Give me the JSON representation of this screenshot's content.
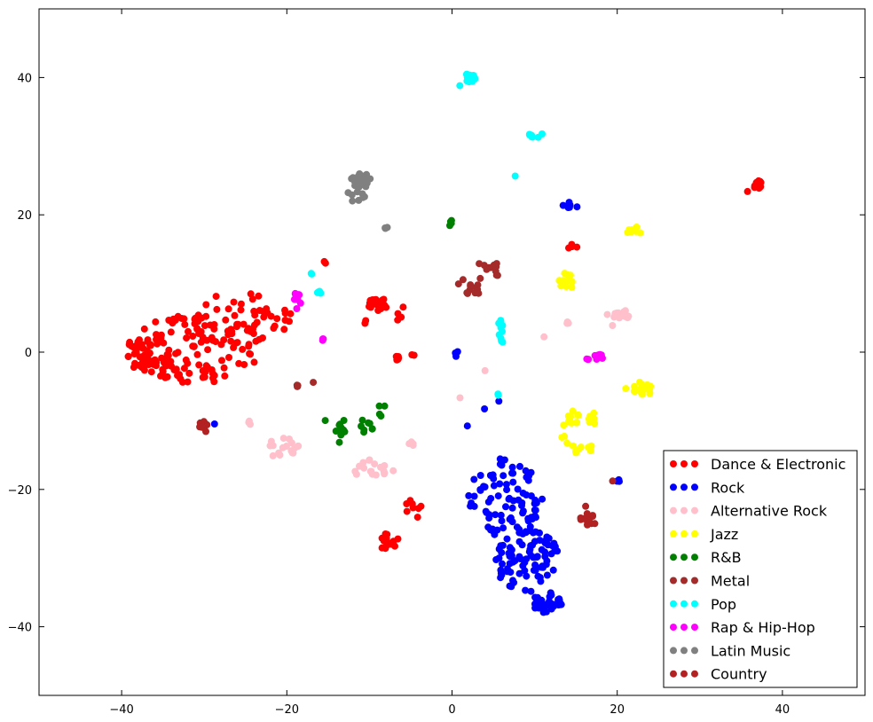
{
  "chart_data": {
    "type": "scatter",
    "title": "",
    "xlabel": "",
    "ylabel": "",
    "xlim": [
      -50,
      50
    ],
    "ylim": [
      -50,
      50
    ],
    "xticks": [
      -40,
      -20,
      0,
      20,
      40
    ],
    "yticks": [
      -40,
      -20,
      0,
      20,
      40
    ],
    "grid": false,
    "legend_position": "bottom-right",
    "series": [
      {
        "name": "Dance & Electronic",
        "color": "#ff0000",
        "clusters": [
          {
            "cx": -36.5,
            "cy": 0,
            "r": 1.5,
            "n": 40,
            "rx": 3,
            "ry": 3
          },
          {
            "cx": -31,
            "cy": 0.5,
            "rx": 8,
            "ry": 5,
            "n": 120
          },
          {
            "cx": -25,
            "cy": 5,
            "rx": 6,
            "ry": 4,
            "n": 45
          },
          {
            "cx": -9,
            "cy": 7,
            "rx": 1.2,
            "ry": 1,
            "n": 20
          },
          {
            "cx": -6.6,
            "cy": 5.5,
            "rx": 1.2,
            "ry": 1.5,
            "n": 4
          },
          {
            "cx": -15.5,
            "cy": 13,
            "rx": 0.3,
            "ry": 0.3,
            "n": 2
          },
          {
            "cx": -10.5,
            "cy": 4.4,
            "rx": 0.3,
            "ry": 0.3,
            "n": 2
          },
          {
            "cx": -6.5,
            "cy": -0.4,
            "rx": 0.6,
            "ry": 0.8,
            "n": 5
          },
          {
            "cx": -4.8,
            "cy": -0.4,
            "rx": 0.3,
            "ry": 0.3,
            "n": 2
          },
          {
            "cx": -4.5,
            "cy": -22.5,
            "rx": 1.2,
            "ry": 1.8,
            "n": 8
          },
          {
            "cx": -7.5,
            "cy": -27.8,
            "rx": 1.2,
            "ry": 1.5,
            "n": 14
          },
          {
            "cx": 37,
            "cy": 24.4,
            "rx": 0.6,
            "ry": 0.6,
            "n": 12
          },
          {
            "cx": 35.8,
            "cy": 23.3,
            "rx": 0.1,
            "ry": 0.1,
            "n": 1
          },
          {
            "cx": 14.5,
            "cy": 15.8,
            "rx": 0.8,
            "ry": 0.8,
            "n": 4
          }
        ]
      },
      {
        "name": "Rock",
        "color": "#0000ff",
        "clusters": [
          {
            "cx": 6.5,
            "cy": -21,
            "rx": 4.5,
            "ry": 6,
            "n": 80
          },
          {
            "cx": 9,
            "cy": -30,
            "rx": 4,
            "ry": 5,
            "n": 90
          },
          {
            "cx": 11.5,
            "cy": -36.5,
            "rx": 1.8,
            "ry": 1.5,
            "n": 40
          },
          {
            "cx": 14.5,
            "cy": 21.4,
            "rx": 0.8,
            "ry": 0.5,
            "n": 8
          },
          {
            "cx": 13.4,
            "cy": 21.4,
            "rx": 0.1,
            "ry": 0.1,
            "n": 1
          },
          {
            "cx": 0.6,
            "cy": -0.5,
            "rx": 0.3,
            "ry": 0.6,
            "n": 3
          },
          {
            "cx": 2,
            "cy": -10.7,
            "rx": 0.2,
            "ry": 0.2,
            "n": 1
          },
          {
            "cx": 4,
            "cy": -8.4,
            "rx": 0.2,
            "ry": 0.2,
            "n": 1
          },
          {
            "cx": 5.6,
            "cy": -7,
            "rx": 0.2,
            "ry": 0.2,
            "n": 1
          },
          {
            "cx": 20.2,
            "cy": -18.7,
            "rx": 0.3,
            "ry": 0.2,
            "n": 3
          },
          {
            "cx": -28.8,
            "cy": -10.5,
            "rx": 0.1,
            "ry": 0.1,
            "n": 1
          }
        ]
      },
      {
        "name": "Alternative Rock",
        "color": "#ffc0cb",
        "clusters": [
          {
            "cx": -20.5,
            "cy": -14,
            "rx": 2,
            "ry": 1.6,
            "n": 18
          },
          {
            "cx": -9.5,
            "cy": -17,
            "rx": 2.5,
            "ry": 1.5,
            "n": 18
          },
          {
            "cx": -4.8,
            "cy": -13.5,
            "rx": 0.5,
            "ry": 0.5,
            "n": 4
          },
          {
            "cx": -24.5,
            "cy": -10,
            "rx": 0.2,
            "ry": 0.6,
            "n": 3
          },
          {
            "cx": 20.5,
            "cy": 5.4,
            "rx": 1,
            "ry": 0.8,
            "n": 15
          },
          {
            "cx": 18.7,
            "cy": 5.5,
            "rx": 0.2,
            "ry": 0.2,
            "n": 1
          },
          {
            "cx": 19.3,
            "cy": 3.8,
            "rx": 0.2,
            "ry": 0.2,
            "n": 1
          },
          {
            "cx": 13.8,
            "cy": 4.3,
            "rx": 0.5,
            "ry": 0.2,
            "n": 3
          },
          {
            "cx": 11,
            "cy": 2.2,
            "rx": 0.2,
            "ry": 0.2,
            "n": 1
          },
          {
            "cx": 4,
            "cy": -2.9,
            "rx": 0.2,
            "ry": 0.2,
            "n": 1
          },
          {
            "cx": 0.8,
            "cy": -6.6,
            "rx": 0.2,
            "ry": 0.2,
            "n": 1
          }
        ]
      },
      {
        "name": "Jazz",
        "color": "#ffff00",
        "clusters": [
          {
            "cx": 23,
            "cy": -5.5,
            "rx": 1.2,
            "ry": 1.2,
            "n": 20
          },
          {
            "cx": 21,
            "cy": -5.2,
            "rx": 0.2,
            "ry": 0.2,
            "n": 1
          },
          {
            "cx": 14,
            "cy": 10.5,
            "rx": 1.2,
            "ry": 1.2,
            "n": 12
          },
          {
            "cx": 22,
            "cy": 17.8,
            "rx": 1.2,
            "ry": 0.6,
            "n": 7
          },
          {
            "cx": 14,
            "cy": -9.5,
            "rx": 1.5,
            "ry": 1.5,
            "n": 12
          },
          {
            "cx": 15.5,
            "cy": -14,
            "rx": 1.5,
            "ry": 1,
            "n": 8
          },
          {
            "cx": 17,
            "cy": -10.5,
            "rx": 0.6,
            "ry": 2.5,
            "n": 6
          },
          {
            "cx": 13.5,
            "cy": -12,
            "rx": 0.8,
            "ry": 1.5,
            "n": 4
          }
        ]
      },
      {
        "name": "R&B",
        "color": "#008000",
        "clusters": [
          {
            "cx": -13.5,
            "cy": -11.3,
            "rx": 0.6,
            "ry": 0.8,
            "n": 10
          },
          {
            "cx": -10.5,
            "cy": -11,
            "rx": 1,
            "ry": 1.2,
            "n": 8
          },
          {
            "cx": -8.5,
            "cy": -8.5,
            "rx": 0.5,
            "ry": 1.5,
            "n": 4
          },
          {
            "cx": -15.3,
            "cy": -10,
            "rx": 0.2,
            "ry": 0.2,
            "n": 1
          },
          {
            "cx": -13,
            "cy": -10,
            "rx": 0.2,
            "ry": 0.2,
            "n": 1
          },
          {
            "cx": -13.5,
            "cy": -13,
            "rx": 0.2,
            "ry": 0.2,
            "n": 1
          },
          {
            "cx": -0.2,
            "cy": 18.8,
            "rx": 0.2,
            "ry": 0.6,
            "n": 4
          }
        ]
      },
      {
        "name": "Metal",
        "color": "#a52a2a",
        "clusters": [
          {
            "cx": 4.5,
            "cy": 12.5,
            "rx": 1.5,
            "ry": 0.8,
            "n": 8
          },
          {
            "cx": 2.3,
            "cy": 9.8,
            "rx": 2,
            "ry": 1.5,
            "n": 14
          },
          {
            "cx": 5.5,
            "cy": 11.8,
            "rx": 0.3,
            "ry": 0.8,
            "n": 4
          },
          {
            "cx": -18.8,
            "cy": -4.5,
            "rx": 0.4,
            "ry": 0.6,
            "n": 4
          },
          {
            "cx": -16.8,
            "cy": -4.5,
            "rx": 0.2,
            "ry": 0.2,
            "n": 1
          }
        ]
      },
      {
        "name": "Pop",
        "color": "#00ffff",
        "clusters": [
          {
            "cx": 2.2,
            "cy": 40,
            "rx": 0.7,
            "ry": 0.7,
            "n": 16
          },
          {
            "cx": 1,
            "cy": 38.8,
            "rx": 0.2,
            "ry": 0.2,
            "n": 1
          },
          {
            "cx": 10,
            "cy": 31.8,
            "rx": 1,
            "ry": 0.6,
            "n": 8
          },
          {
            "cx": 7.8,
            "cy": 25.7,
            "rx": 0.2,
            "ry": 0.2,
            "n": 1
          },
          {
            "cx": 6,
            "cy": 3,
            "rx": 0.5,
            "ry": 1.8,
            "n": 10
          },
          {
            "cx": 5.7,
            "cy": -6.3,
            "rx": 0.2,
            "ry": 0.3,
            "n": 2
          },
          {
            "cx": -16,
            "cy": 8.7,
            "rx": 0.5,
            "ry": 0.2,
            "n": 4
          },
          {
            "cx": -17,
            "cy": 11.5,
            "rx": 0.3,
            "ry": 0.2,
            "n": 2
          }
        ]
      },
      {
        "name": "Rap & Hip-Hop",
        "color": "#ff00ff",
        "clusters": [
          {
            "cx": 17.8,
            "cy": -0.8,
            "rx": 0.7,
            "ry": 0.5,
            "n": 12
          },
          {
            "cx": 16.3,
            "cy": -1,
            "rx": 0.4,
            "ry": 0.2,
            "n": 3
          },
          {
            "cx": -18.8,
            "cy": 7.3,
            "rx": 0.5,
            "ry": 1.5,
            "n": 10
          },
          {
            "cx": -15.8,
            "cy": 1.8,
            "rx": 0.3,
            "ry": 0.2,
            "n": 3
          }
        ]
      },
      {
        "name": "Latin Music",
        "color": "#808080",
        "clusters": [
          {
            "cx": -11,
            "cy": 25,
            "rx": 1.3,
            "ry": 1,
            "n": 30
          },
          {
            "cx": -12,
            "cy": 22.8,
            "rx": 1.5,
            "ry": 0.8,
            "n": 8
          },
          {
            "cx": -8,
            "cy": 18,
            "rx": 0.2,
            "ry": 0.5,
            "n": 3
          }
        ]
      },
      {
        "name": "Country",
        "color": "#b22222",
        "clusters": [
          {
            "cx": 16.5,
            "cy": -24.5,
            "rx": 1,
            "ry": 1,
            "n": 18
          },
          {
            "cx": 16,
            "cy": -22.5,
            "rx": 0.2,
            "ry": 0.2,
            "n": 1
          },
          {
            "cx": 19.3,
            "cy": -18.8,
            "rx": 0.2,
            "ry": 0.2,
            "n": 1
          },
          {
            "cx": -30.2,
            "cy": -10.5,
            "rx": 0.6,
            "ry": 0.5,
            "n": 10
          },
          {
            "cx": -29.8,
            "cy": -11.7,
            "rx": 0.2,
            "ry": 0.2,
            "n": 1
          }
        ]
      }
    ]
  }
}
